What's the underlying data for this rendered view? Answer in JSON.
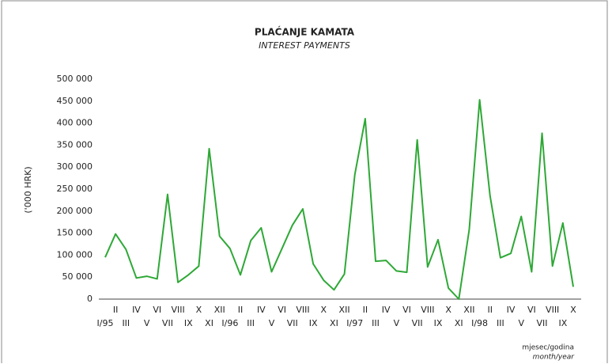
{
  "chart_data": {
    "type": "line",
    "title": "PLAĆANJE KAMATA",
    "subtitle": "INTEREST PAYMENTS",
    "y_label": "('000 HRK)",
    "x_label": "mjesec/godina",
    "x_label_en": "month/year",
    "categories": [
      "I/95",
      "II",
      "III",
      "IV",
      "V",
      "VI",
      "VII",
      "VIII",
      "IX",
      "X",
      "XI",
      "XII",
      "I/96",
      "II",
      "III",
      "IV",
      "V",
      "VI",
      "VII",
      "VIII",
      "IX",
      "X",
      "XI",
      "XII",
      "I/97",
      "II",
      "III",
      "IV",
      "V",
      "VI",
      "VII",
      "VIII",
      "IX",
      "X",
      "XI",
      "XII",
      "I/98",
      "II",
      "III",
      "IV",
      "V",
      "VI",
      "VII",
      "VIII",
      "IX",
      "X"
    ],
    "series": [
      {
        "name": "Interest payments",
        "color": "#2ea836",
        "values": [
          95000,
          148000,
          113000,
          48000,
          52000,
          46000,
          238000,
          38000,
          55000,
          75000,
          342000,
          143000,
          115000,
          55000,
          133000,
          162000,
          62000,
          115000,
          168000,
          205000,
          80000,
          43000,
          21000,
          57000,
          283000,
          410000,
          86000,
          88000,
          64000,
          61000,
          362000,
          73000,
          135000,
          25000,
          0,
          158000,
          453000,
          235000,
          94000,
          104000,
          188000,
          62000,
          377000,
          75000,
          173000,
          28000
        ]
      }
    ],
    "ylim": [
      0,
      500000
    ],
    "yticks": [
      0,
      {
        "value": 50000,
        "label": "50 000"
      },
      {
        "value": 100000,
        "label": "100 000"
      },
      {
        "value": 150000,
        "label": "150 000"
      },
      {
        "value": 200000,
        "label": "200 000"
      },
      {
        "value": 250000,
        "label": "250 000"
      },
      {
        "value": 300000,
        "label": "300 000"
      },
      {
        "value": 350000,
        "label": "350 000"
      },
      {
        "value": 400000,
        "label": "400 000"
      },
      {
        "value": 450000,
        "label": "450 000"
      },
      {
        "value": 500000,
        "label": "500 000"
      }
    ]
  }
}
